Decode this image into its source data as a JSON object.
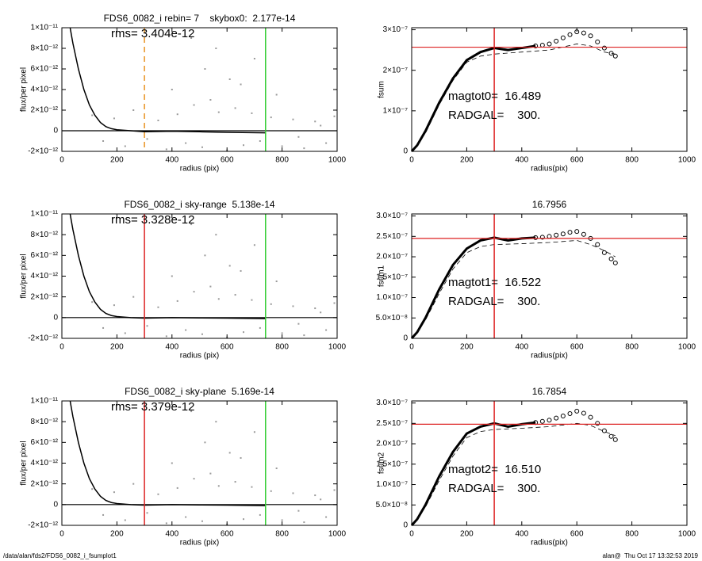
{
  "chart_data": [
    {
      "type": "line",
      "title": "FDS6_0082_i rebin= 7    skybox0:  2.177e-14",
      "xlabel": "radius (pix)",
      "ylabel": "flux/per pixel",
      "annotations": [
        "rms= 3.404e-12"
      ],
      "xlim": [
        0,
        1000
      ],
      "xticks": [
        0,
        200,
        400,
        600,
        800,
        1000
      ],
      "ylim": [
        -2e-12,
        1e-11
      ],
      "yticks": [
        {
          "value": -2e-12,
          "label": "-2×10⁻¹²"
        },
        0,
        {
          "value": 2e-12,
          "label": "2×10⁻¹²"
        },
        {
          "value": 4e-12,
          "label": "4×10⁻¹²"
        },
        {
          "value": 6e-12,
          "label": "6×10⁻¹²"
        },
        {
          "value": 8e-12,
          "label": "8×10⁻¹²"
        },
        {
          "value": 1e-11,
          "label": "1×10⁻¹¹"
        }
      ],
      "series": [
        {
          "style": "dots",
          "color": "#9a9a9a",
          "x": [
            110,
            150,
            190,
            230,
            260,
            310,
            350,
            380,
            420,
            450,
            480,
            510,
            540,
            570,
            600,
            630,
            660,
            690,
            720,
            760,
            800,
            840,
            880,
            920,
            960,
            990,
            520,
            560,
            610,
            650,
            700,
            780,
            860,
            940,
            400,
            470
          ],
          "values": [
            1.5e-12,
            -1e-12,
            1.2e-12,
            -1.5e-12,
            2e-12,
            -8e-13,
            1e-12,
            -1.8e-12,
            1.6e-12,
            -1.2e-12,
            2.5e-12,
            -1.6e-12,
            3e-12,
            1.8e-12,
            -1.9e-12,
            2.2e-12,
            -1.4e-12,
            1.7e-12,
            -1e-12,
            1.3e-12,
            -1.5e-12,
            1.1e-12,
            -1.7e-12,
            9e-13,
            -1.2e-12,
            1.4e-12,
            6e-12,
            8e-12,
            5e-12,
            4.5e-12,
            7e-12,
            3.5e-12,
            -6e-13,
            5e-13,
            4e-12,
            9e-12
          ]
        },
        {
          "style": "solid",
          "color": "#000000",
          "x": [
            30,
            40,
            60,
            80,
            100,
            120,
            140,
            160,
            180,
            200,
            250,
            300,
            400,
            500,
            600,
            740
          ],
          "values": [
            1e-11,
            8.5e-12,
            6e-12,
            4e-12,
            2.5e-12,
            1.5e-12,
            8e-13,
            4e-13,
            2e-13,
            1e-13,
            0,
            -1e-13,
            -5e-14,
            -1e-13,
            -1.5e-13,
            -2e-13
          ]
        }
      ],
      "hlines": [
        {
          "value": 0,
          "color": "#000000"
        }
      ],
      "vlines": [
        {
          "value": 300,
          "color": "#e8921e",
          "dashed": true
        },
        {
          "value": 740,
          "color": "#33cc33"
        }
      ]
    },
    {
      "type": "line",
      "ylabel": "fsum",
      "xlabel": "radius(pix)",
      "annotations": [
        "magtot0=  16.489",
        "RADGAL=    300."
      ],
      "xlim": [
        0,
        1000
      ],
      "xticks": [
        0,
        200,
        400,
        600,
        800,
        1000
      ],
      "ylim": [
        0,
        3.05e-07
      ],
      "yticks": [
        0,
        {
          "value": 1e-07,
          "label": "1×10⁻⁷"
        },
        {
          "value": 2e-07,
          "label": "2×10⁻⁷"
        },
        {
          "value": 3e-07,
          "label": "3×10⁻⁷"
        }
      ],
      "series": [
        {
          "style": "dashed",
          "color": "#000000",
          "x": [
            0,
            50,
            100,
            150,
            200,
            250,
            300,
            400,
            500,
            600,
            650,
            700,
            740
          ],
          "values": [
            0,
            4.5e-08,
            1.15e-07,
            1.75e-07,
            2.2e-07,
            2.35e-07,
            2.4e-07,
            2.45e-07,
            2.5e-07,
            2.65e-07,
            2.6e-07,
            2.45e-07,
            2.4e-07
          ]
        },
        {
          "style": "solid",
          "color": "#000000",
          "x": [
            0,
            20,
            50,
            100,
            150,
            200,
            250,
            300,
            350,
            400,
            450
          ],
          "values": [
            0,
            1.5e-08,
            5e-08,
            1.2e-07,
            1.8e-07,
            2.25e-07,
            2.45e-07,
            2.55e-07,
            2.5e-07,
            2.55e-07,
            2.6e-07
          ]
        },
        {
          "style": "markers",
          "color": "#000000",
          "x": [
            450,
            475,
            500,
            525,
            550,
            575,
            600,
            625,
            650,
            675,
            700,
            725,
            740
          ],
          "values": [
            2.6e-07,
            2.62e-07,
            2.65e-07,
            2.72e-07,
            2.8e-07,
            2.88e-07,
            2.95e-07,
            2.92e-07,
            2.85e-07,
            2.7e-07,
            2.55e-07,
            2.42e-07,
            2.35e-07
          ]
        }
      ],
      "hlines": [
        {
          "value": 2.57e-07,
          "color": "#dd2222"
        }
      ],
      "vlines": [
        {
          "value": 300,
          "color": "#dd2222"
        }
      ]
    },
    {
      "type": "line",
      "title": "FDS6_0082_i sky-range  5.138e-14",
      "xlabel": "radius (pix)",
      "ylabel": "flux/per pixel",
      "annotations": [
        "rms= 3.328e-12"
      ],
      "xlim": [
        0,
        1000
      ],
      "xticks": [
        0,
        200,
        400,
        600,
        800,
        1000
      ],
      "ylim": [
        -2e-12,
        1e-11
      ],
      "yticks": [
        {
          "value": -2e-12,
          "label": "-2×10⁻¹²"
        },
        0,
        {
          "value": 2e-12,
          "label": "2×10⁻¹²"
        },
        {
          "value": 4e-12,
          "label": "4×10⁻¹²"
        },
        {
          "value": 6e-12,
          "label": "6×10⁻¹²"
        },
        {
          "value": 8e-12,
          "label": "8×10⁻¹²"
        },
        {
          "value": 1e-11,
          "label": "1×10⁻¹¹"
        }
      ],
      "series": [
        {
          "style": "dots",
          "color": "#9a9a9a",
          "x": [
            110,
            150,
            190,
            230,
            260,
            310,
            350,
            380,
            420,
            450,
            480,
            510,
            540,
            570,
            600,
            630,
            660,
            690,
            720,
            760,
            800,
            840,
            880,
            920,
            960,
            990,
            520,
            560,
            610,
            650,
            700,
            780,
            860,
            940,
            400,
            470
          ],
          "values": [
            1.5e-12,
            -1e-12,
            1.2e-12,
            -1.5e-12,
            2e-12,
            -8e-13,
            1e-12,
            -1.8e-12,
            1.6e-12,
            -1.2e-12,
            2.5e-12,
            -1.6e-12,
            3e-12,
            1.8e-12,
            -1.9e-12,
            2.2e-12,
            -1.4e-12,
            1.7e-12,
            -1e-12,
            1.3e-12,
            -1.5e-12,
            1.1e-12,
            -1.7e-12,
            9e-13,
            -1.2e-12,
            1.4e-12,
            6e-12,
            8e-12,
            5e-12,
            4.5e-12,
            7e-12,
            3.5e-12,
            -6e-13,
            5e-13,
            4e-12,
            9e-12
          ]
        },
        {
          "style": "solid",
          "color": "#000000",
          "x": [
            30,
            40,
            60,
            80,
            100,
            120,
            140,
            160,
            180,
            200,
            250,
            300,
            400,
            500,
            600,
            740
          ],
          "values": [
            1e-11,
            8.5e-12,
            6e-12,
            4e-12,
            2.5e-12,
            1.5e-12,
            8e-13,
            4e-13,
            2e-13,
            1e-13,
            0,
            -5e-14,
            0,
            -3e-14,
            -5e-14,
            -1e-13
          ]
        }
      ],
      "hlines": [
        {
          "value": 0,
          "color": "#000000"
        }
      ],
      "vlines": [
        {
          "value": 300,
          "color": "#dd2222"
        },
        {
          "value": 740,
          "color": "#33cc33"
        }
      ]
    },
    {
      "type": "line",
      "title": "16.7956",
      "ylabel": "fsum1",
      "xlabel": "radius(pix)",
      "annotations": [
        "magtot1=  16.522",
        "RADGAL=    300."
      ],
      "xlim": [
        0,
        1000
      ],
      "xticks": [
        0,
        200,
        400,
        600,
        800,
        1000
      ],
      "ylim": [
        0,
        3.05e-07
      ],
      "yticks": [
        0,
        {
          "value": 5e-08,
          "label": "5.0×10⁻⁸"
        },
        {
          "value": 1e-07,
          "label": "1.0×10⁻⁷"
        },
        {
          "value": 1.5e-07,
          "label": "1.5×10⁻⁷"
        },
        {
          "value": 2e-07,
          "label": "2.0×10⁻⁷"
        },
        {
          "value": 2.5e-07,
          "label": "2.5×10⁻⁷"
        },
        {
          "value": 3e-07,
          "label": "3.0×10⁻⁷"
        }
      ],
      "series": [
        {
          "style": "dashed",
          "color": "#000000",
          "x": [
            0,
            50,
            100,
            150,
            200,
            250,
            300,
            400,
            500,
            600,
            650,
            700,
            740
          ],
          "values": [
            0,
            4.5e-08,
            1.1e-07,
            1.7e-07,
            2.1e-07,
            2.25e-07,
            2.3e-07,
            2.32e-07,
            2.35e-07,
            2.4e-07,
            2.3e-07,
            2.15e-07,
            2e-07
          ]
        },
        {
          "style": "solid",
          "color": "#000000",
          "x": [
            0,
            20,
            50,
            100,
            150,
            200,
            250,
            300,
            350,
            400,
            450
          ],
          "values": [
            0,
            1.5e-08,
            5e-08,
            1.2e-07,
            1.8e-07,
            2.2e-07,
            2.4e-07,
            2.47e-07,
            2.4e-07,
            2.45e-07,
            2.47e-07
          ]
        },
        {
          "style": "markers",
          "color": "#000000",
          "x": [
            450,
            475,
            500,
            525,
            550,
            575,
            600,
            625,
            650,
            675,
            700,
            725,
            740
          ],
          "values": [
            2.47e-07,
            2.48e-07,
            2.5e-07,
            2.53e-07,
            2.56e-07,
            2.6e-07,
            2.62e-07,
            2.55e-07,
            2.45e-07,
            2.3e-07,
            2.1e-07,
            1.95e-07,
            1.85e-07
          ]
        }
      ],
      "hlines": [
        {
          "value": 2.45e-07,
          "color": "#dd2222"
        }
      ],
      "vlines": [
        {
          "value": 300,
          "color": "#dd2222"
        }
      ]
    },
    {
      "type": "line",
      "title": "FDS6_0082_i sky-plane  5.169e-14",
      "xlabel": "radius (pix)",
      "ylabel": "flux/per pixel",
      "annotations": [
        "rms= 3.379e-12"
      ],
      "xlim": [
        0,
        1000
      ],
      "xticks": [
        0,
        200,
        400,
        600,
        800,
        1000
      ],
      "ylim": [
        -2e-12,
        1e-11
      ],
      "yticks": [
        {
          "value": -2e-12,
          "label": "-2×10⁻¹²"
        },
        0,
        {
          "value": 2e-12,
          "label": "2×10⁻¹²"
        },
        {
          "value": 4e-12,
          "label": "4×10⁻¹²"
        },
        {
          "value": 6e-12,
          "label": "6×10⁻¹²"
        },
        {
          "value": 8e-12,
          "label": "8×10⁻¹²"
        },
        {
          "value": 1e-11,
          "label": "1×10⁻¹¹"
        }
      ],
      "series": [
        {
          "style": "dots",
          "color": "#9a9a9a",
          "x": [
            110,
            150,
            190,
            230,
            260,
            310,
            350,
            380,
            420,
            450,
            480,
            510,
            540,
            570,
            600,
            630,
            660,
            690,
            720,
            760,
            800,
            840,
            880,
            920,
            960,
            990,
            520,
            560,
            610,
            650,
            700,
            780,
            860,
            940,
            400,
            470
          ],
          "values": [
            1.5e-12,
            -1e-12,
            1.2e-12,
            -1.5e-12,
            2e-12,
            -8e-13,
            1e-12,
            -1.8e-12,
            1.6e-12,
            -1.2e-12,
            2.5e-12,
            -1.6e-12,
            3e-12,
            1.8e-12,
            -1.9e-12,
            2.2e-12,
            -1.4e-12,
            1.7e-12,
            -1e-12,
            1.3e-12,
            -1.5e-12,
            1.1e-12,
            -1.7e-12,
            9e-13,
            -1.2e-12,
            1.4e-12,
            6e-12,
            8e-12,
            5e-12,
            4.5e-12,
            7e-12,
            3.5e-12,
            -6e-13,
            5e-13,
            4e-12,
            9e-12
          ]
        },
        {
          "style": "solid",
          "color": "#000000",
          "x": [
            30,
            40,
            60,
            80,
            100,
            120,
            140,
            160,
            180,
            200,
            250,
            300,
            400,
            500,
            600,
            740
          ],
          "values": [
            1e-11,
            8.5e-12,
            6e-12,
            4e-12,
            2.5e-12,
            1.5e-12,
            8e-13,
            4e-13,
            2e-13,
            1e-13,
            0,
            -5e-14,
            0,
            -3e-14,
            -5e-14,
            -1e-13
          ]
        }
      ],
      "hlines": [
        {
          "value": 0,
          "color": "#000000"
        }
      ],
      "vlines": [
        {
          "value": 300,
          "color": "#dd2222"
        },
        {
          "value": 740,
          "color": "#33cc33"
        }
      ]
    },
    {
      "type": "line",
      "title": "16.7854",
      "ylabel": "fsum2",
      "xlabel": "radius(pix)",
      "annotations": [
        "magtot2=  16.510",
        "RADGAL=    300."
      ],
      "xlim": [
        0,
        1000
      ],
      "xticks": [
        0,
        200,
        400,
        600,
        800,
        1000
      ],
      "ylim": [
        0,
        3.05e-07
      ],
      "yticks": [
        0,
        {
          "value": 5e-08,
          "label": "5.0×10⁻⁸"
        },
        {
          "value": 1e-07,
          "label": "1.0×10⁻⁷"
        },
        {
          "value": 1.5e-07,
          "label": "1.5×10⁻⁷"
        },
        {
          "value": 2e-07,
          "label": "2.0×10⁻⁷"
        },
        {
          "value": 2.5e-07,
          "label": "2.5×10⁻⁷"
        },
        {
          "value": 3e-07,
          "label": "3.0×10⁻⁷"
        }
      ],
      "series": [
        {
          "style": "dashed",
          "color": "#000000",
          "x": [
            0,
            50,
            100,
            150,
            200,
            250,
            300,
            400,
            500,
            600,
            650,
            700,
            740
          ],
          "values": [
            0,
            4.5e-08,
            1.1e-07,
            1.7e-07,
            2.15e-07,
            2.3e-07,
            2.35e-07,
            2.38e-07,
            2.42e-07,
            2.5e-07,
            2.45e-07,
            2.3e-07,
            2.2e-07
          ]
        },
        {
          "style": "solid",
          "color": "#000000",
          "x": [
            0,
            20,
            50,
            100,
            150,
            200,
            250,
            300,
            350,
            400,
            450
          ],
          "values": [
            0,
            1.5e-08,
            5e-08,
            1.2e-07,
            1.8e-07,
            2.25e-07,
            2.42e-07,
            2.5e-07,
            2.42e-07,
            2.48e-07,
            2.52e-07
          ]
        },
        {
          "style": "markers",
          "color": "#000000",
          "x": [
            450,
            475,
            500,
            525,
            550,
            575,
            600,
            625,
            650,
            675,
            700,
            725,
            740
          ],
          "values": [
            2.52e-07,
            2.55e-07,
            2.58e-07,
            2.63e-07,
            2.68e-07,
            2.74e-07,
            2.8e-07,
            2.75e-07,
            2.65e-07,
            2.5e-07,
            2.32e-07,
            2.18e-07,
            2.1e-07
          ]
        }
      ],
      "hlines": [
        {
          "value": 2.48e-07,
          "color": "#dd2222"
        }
      ],
      "vlines": [
        {
          "value": 300,
          "color": "#dd2222"
        }
      ]
    }
  ],
  "footer": {
    "path": "/data/alan/fds2/FDS6_0082_i_fsumplot1",
    "stamp": "alan@  Thu Oct 17 13:32:53 2019"
  }
}
